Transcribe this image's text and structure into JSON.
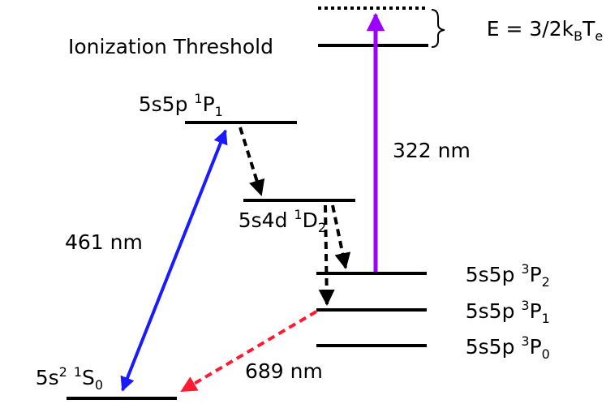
{
  "levels": {
    "ionization": {
      "text": "Ionization Threshold"
    },
    "p1_singlet": {
      "base": "5s5p ",
      "sup": "1",
      "term": "P",
      "sub": "1"
    },
    "d2": {
      "base": "5s4d ",
      "sup": "1",
      "term": "D",
      "sub": "2"
    },
    "p2_triplet": {
      "base": "5s5p ",
      "sup": "3",
      "term": "P",
      "sub": "2"
    },
    "p1_triplet": {
      "base": "5s5p ",
      "sup": "3",
      "term": "P",
      "sub": "1"
    },
    "p0_triplet": {
      "base": "5s5p ",
      "sup": "3",
      "term": "P",
      "sub": "0"
    },
    "ground": {
      "base": "5s",
      "sup1": "2",
      "mid": " ",
      "sup": "1",
      "term": "S",
      "sub": "0"
    }
  },
  "energy": {
    "prefix": "E = 3/2k",
    "sub_b": "B",
    "t": "T",
    "sub_e": "e"
  },
  "transitions": {
    "blue": {
      "label": "461 nm",
      "color": "#1a1aff"
    },
    "purple": {
      "label": "322 nm",
      "color": "#9b00ff"
    },
    "red": {
      "label": "689 nm",
      "color": "#ff1a33"
    }
  }
}
